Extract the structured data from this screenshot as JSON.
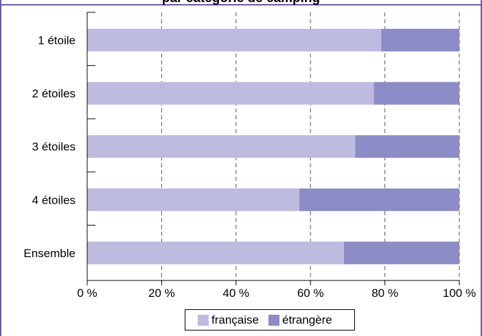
{
  "chart_data": {
    "type": "bar",
    "orientation": "horizontal",
    "stacked": true,
    "title": "par catégorie de camping",
    "categories": [
      "1 étoile",
      "2 étoiles",
      "3 étoiles",
      "4 étoiles",
      "Ensemble"
    ],
    "series": [
      {
        "name": "française",
        "color": "#bdbbe0",
        "values": [
          79,
          77,
          72,
          57,
          69
        ]
      },
      {
        "name": "étrangère",
        "color": "#8c8cc6",
        "values": [
          21,
          23,
          28,
          43,
          31
        ]
      }
    ],
    "xlim": [
      0,
      100
    ],
    "xticks": [
      "0 %",
      "20 %",
      "40 %",
      "60 %",
      "80 %",
      "100 %"
    ],
    "grid": "vertical dashed",
    "legend_position": "bottom"
  },
  "colors": {
    "frame": "#6b5aa6"
  }
}
